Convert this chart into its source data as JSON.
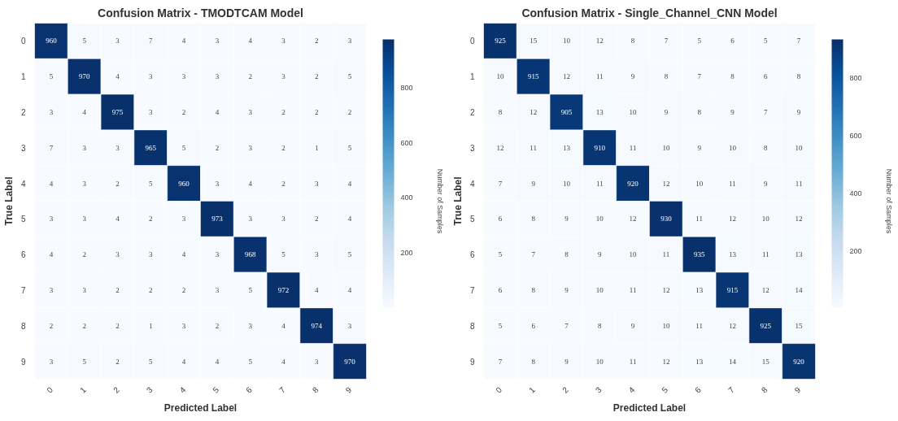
{
  "chart_data": [
    {
      "type": "heatmap",
      "title": "Confusion Matrix - TMODTCAM Model",
      "xlabel": "Predicted Label",
      "ylabel": "True Label",
      "clabel": "Number of Samples",
      "categories": [
        "0",
        "1",
        "2",
        "3",
        "4",
        "5",
        "6",
        "7",
        "8",
        "9"
      ],
      "y_categories": [
        "0",
        "1",
        "2",
        "3",
        "4",
        "5",
        "6",
        "7",
        "8",
        "9"
      ],
      "cells": [
        [
          960,
          5,
          3,
          7,
          4,
          3,
          4,
          3,
          2,
          3
        ],
        [
          5,
          970,
          4,
          3,
          3,
          3,
          2,
          3,
          2,
          5
        ],
        [
          3,
          4,
          975,
          3,
          2,
          4,
          3,
          2,
          2,
          2
        ],
        [
          7,
          3,
          3,
          965,
          5,
          2,
          3,
          2,
          1,
          5
        ],
        [
          4,
          3,
          2,
          5,
          960,
          3,
          4,
          2,
          3,
          4
        ],
        [
          3,
          3,
          4,
          2,
          3,
          973,
          3,
          3,
          2,
          4
        ],
        [
          4,
          2,
          3,
          3,
          4,
          3,
          968,
          5,
          3,
          5
        ],
        [
          3,
          3,
          2,
          2,
          2,
          3,
          5,
          972,
          4,
          4
        ],
        [
          2,
          2,
          2,
          1,
          3,
          2,
          3,
          4,
          974,
          3
        ],
        [
          3,
          5,
          2,
          5,
          4,
          4,
          5,
          4,
          3,
          970
        ]
      ],
      "clim": [
        1,
        975
      ],
      "cticks": [
        200,
        400,
        600,
        800
      ],
      "data_labels": true
    },
    {
      "type": "heatmap",
      "title": "Confusion Matrix - Single_Channel_CNN Model",
      "xlabel": "Predicted Label",
      "ylabel": "True Label",
      "clabel": "Number of Samples",
      "categories": [
        "0",
        "1",
        "2",
        "3",
        "4",
        "5",
        "6",
        "7",
        "8",
        "9"
      ],
      "y_categories": [
        "0",
        "1",
        "2",
        "3",
        "4",
        "5",
        "6",
        "7",
        "8",
        "9"
      ],
      "cells": [
        [
          925,
          15,
          10,
          12,
          8,
          7,
          5,
          6,
          5,
          7
        ],
        [
          10,
          915,
          12,
          11,
          9,
          8,
          7,
          8,
          6,
          8
        ],
        [
          8,
          12,
          905,
          13,
          10,
          9,
          8,
          9,
          7,
          9
        ],
        [
          12,
          11,
          13,
          910,
          11,
          10,
          9,
          10,
          8,
          10
        ],
        [
          7,
          9,
          10,
          11,
          920,
          12,
          10,
          11,
          9,
          11
        ],
        [
          6,
          8,
          9,
          10,
          12,
          930,
          11,
          12,
          10,
          12
        ],
        [
          5,
          7,
          8,
          9,
          10,
          11,
          935,
          13,
          11,
          13
        ],
        [
          6,
          8,
          9,
          10,
          11,
          12,
          13,
          915,
          12,
          14
        ],
        [
          5,
          6,
          7,
          8,
          9,
          10,
          11,
          12,
          925,
          15
        ],
        [
          7,
          8,
          9,
          10,
          11,
          12,
          13,
          14,
          15,
          920
        ]
      ],
      "clim": [
        5,
        935
      ],
      "cticks": [
        200,
        400,
        600,
        800
      ],
      "data_labels": true
    }
  ]
}
